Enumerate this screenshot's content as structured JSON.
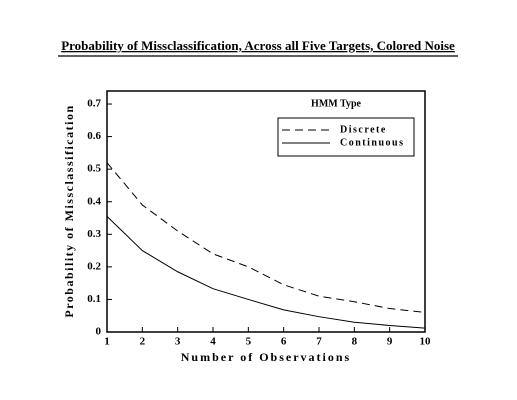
{
  "chart_data": {
    "type": "line",
    "title": "Probability of Missclassification, Across all Five Targets, Colored Noise",
    "x_label": "Number of Observations",
    "y_label": "Probability of Missclassification",
    "x": [
      1,
      2,
      3,
      4,
      5,
      6,
      7,
      8,
      9,
      10
    ],
    "series": [
      {
        "name": "Discrete",
        "color": "#000000",
        "style": "dashed",
        "values": [
          0.52,
          0.39,
          0.31,
          0.24,
          0.2,
          0.145,
          0.11,
          0.093,
          0.072,
          0.06
        ]
      },
      {
        "name": "Continuous",
        "color": "#000000",
        "style": "solid",
        "values": [
          0.355,
          0.25,
          0.185,
          0.133,
          0.1,
          0.068,
          0.047,
          0.03,
          0.02,
          0.012
        ]
      }
    ],
    "legend_title": "HMM Type",
    "legend": "upper right",
    "xlim": [
      1,
      10
    ],
    "xticks": [
      1,
      2,
      3,
      4,
      5,
      6,
      7,
      8,
      9,
      10
    ],
    "ylim": [
      0,
      0.74
    ],
    "yticks": [
      0,
      0.1,
      0.2,
      0.3,
      0.4,
      0.5,
      0.6,
      0.7
    ],
    "grid": false
  }
}
